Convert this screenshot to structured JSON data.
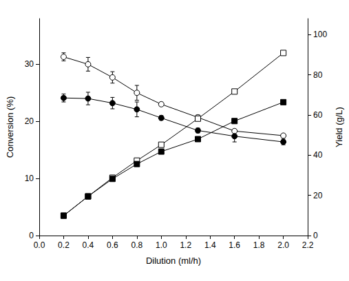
{
  "chart_data": {
    "type": "line",
    "xlabel": "Dilution (ml/h)",
    "ylabel": "Conversion (%)",
    "y2label": "Yield (g/L)",
    "x": [
      0.2,
      0.4,
      0.6,
      0.8,
      1.0,
      1.3,
      1.6,
      2.0
    ],
    "xlim": [
      0,
      2.2
    ],
    "xticks": [
      {
        "value": 0,
        "label": "0.0"
      },
      0.2,
      0.4,
      0.6,
      0.8,
      {
        "value": 1,
        "label": "1.0"
      },
      1.2,
      1.4,
      1.6,
      1.8,
      {
        "value": 2,
        "label": "2.0"
      },
      2.2
    ],
    "ylim": [
      0,
      38
    ],
    "yticks": [
      0,
      10,
      20,
      30
    ],
    "y2lim": [
      0,
      108
    ],
    "y2ticks": [
      0,
      20,
      40,
      60,
      80,
      100
    ],
    "grid": false,
    "series": [
      {
        "color": "#000000",
        "marker": "open-circle",
        "values": [
          31.3,
          30.0,
          27.7,
          25.0,
          23.0,
          20.7,
          18.3,
          17.5
        ],
        "errors": [
          0.7,
          1.2,
          1.0,
          1.3,
          0.3,
          0.4,
          0.3,
          0.3
        ]
      },
      {
        "color": "#000000",
        "marker": "filled-circle",
        "values": [
          24.1,
          24.0,
          23.2,
          22.1,
          20.6,
          18.4,
          17.4,
          16.4
        ],
        "errors": [
          0.7,
          1.1,
          1.0,
          1.3,
          0.4,
          0.4,
          1.0,
          0.5
        ]
      },
      {
        "color": "#000000",
        "marker": "open-square",
        "axis": "y2",
        "values": [
          9.9,
          19.5,
          28.8,
          37.3,
          45.2,
          58.2,
          71.7,
          90.9
        ]
      },
      {
        "color": "#000000",
        "marker": "filled-square",
        "axis": "y2",
        "values": [
          9.9,
          19.5,
          28.2,
          35.6,
          41.8,
          48.0,
          57.0,
          66.4
        ]
      }
    ]
  }
}
